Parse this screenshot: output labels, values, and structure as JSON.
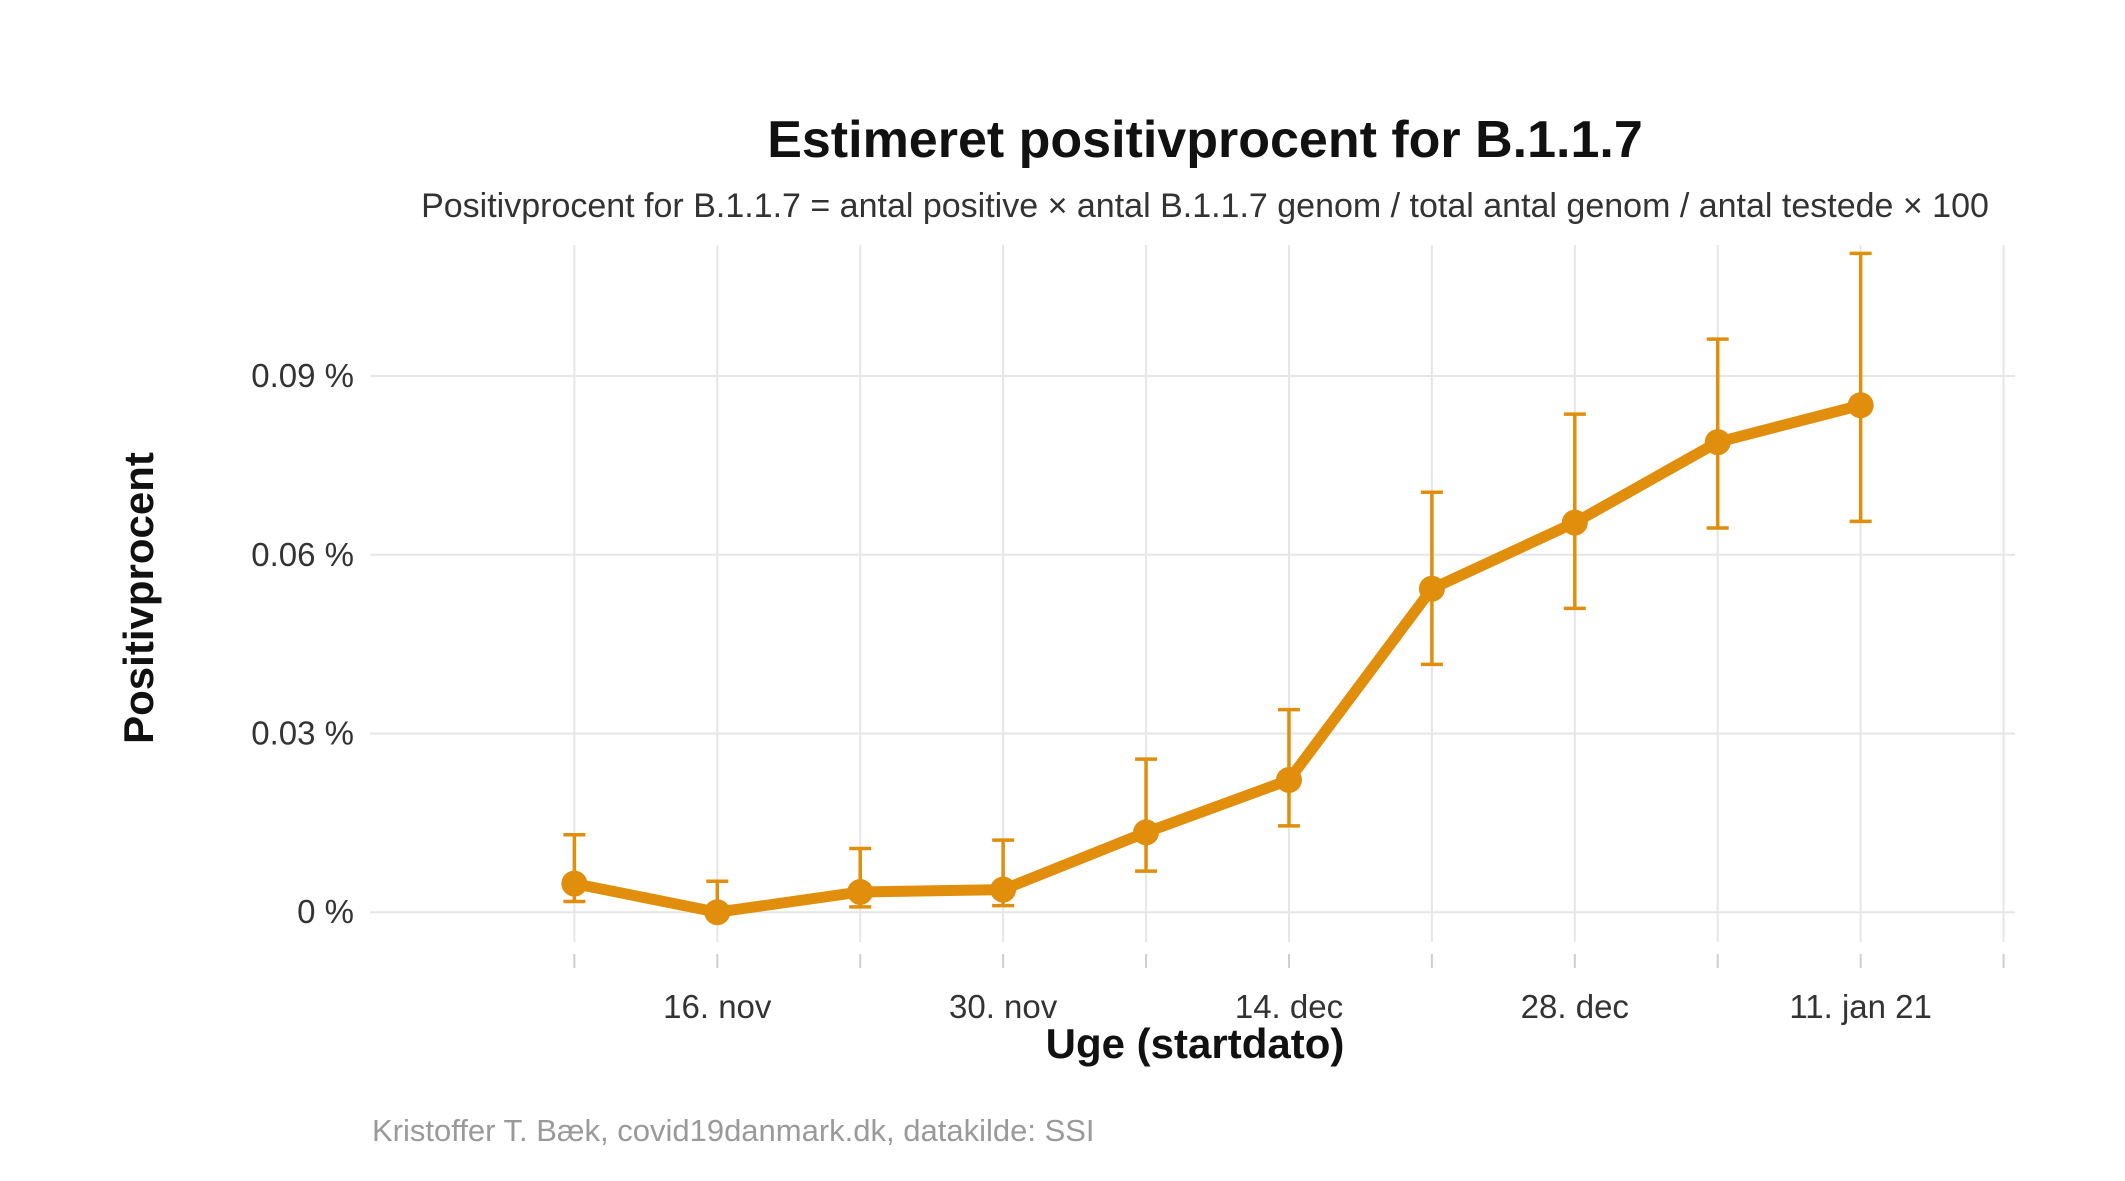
{
  "chart_data": {
    "type": "line",
    "title": "Estimeret positivprocent for B.1.1.7",
    "subtitle": "Positivprocent for B.1.1.7 = antal positive × antal B.1.1.7 genom / total antal genom / antal testede × 100",
    "xlabel": "Uge (startdato)",
    "ylabel": "Positivprocent",
    "caption": "Kristoffer T. Bæk, covid19danmark.dk, datakilde: SSI",
    "x_tick_labels": [
      "16. nov",
      "30. nov",
      "14. dec",
      "28. dec",
      "11. jan 21"
    ],
    "y_tick_labels": [
      "0 %",
      "0.03 %",
      "0.06 %",
      "0.09 %"
    ],
    "y_ticks": [
      0,
      0.03,
      0.06,
      0.09
    ],
    "ylim": [
      -0.005,
      0.112
    ],
    "xlim_weeks": [
      -1.43,
      10.08
    ],
    "grid": true,
    "legend": "none",
    "color": "#E08E0B",
    "series": [
      {
        "x": [
          "2020-11-02",
          "2020-11-09",
          "2020-11-16",
          "2020-11-23",
          "2020-11-30",
          "2020-12-07",
          "2020-12-14",
          "2020-12-21",
          "2020-12-28",
          "2021-01-04",
          "2021-01-11"
        ],
        "values": [
          0.0048,
          0.0,
          0.0034,
          0.0038,
          0.0134,
          0.0222,
          0.0543,
          0.0654,
          0.0789,
          0.0851,
          null
        ],
        "lower": [
          0.0018,
          0.0,
          0.0009,
          0.0011,
          0.0069,
          0.0145,
          0.0416,
          0.051,
          0.0645,
          0.0656,
          null
        ],
        "upper": [
          0.013,
          0.0052,
          0.0107,
          0.0121,
          0.0257,
          0.034,
          0.0705,
          0.0836,
          0.0962,
          0.1106,
          null
        ]
      }
    ]
  }
}
